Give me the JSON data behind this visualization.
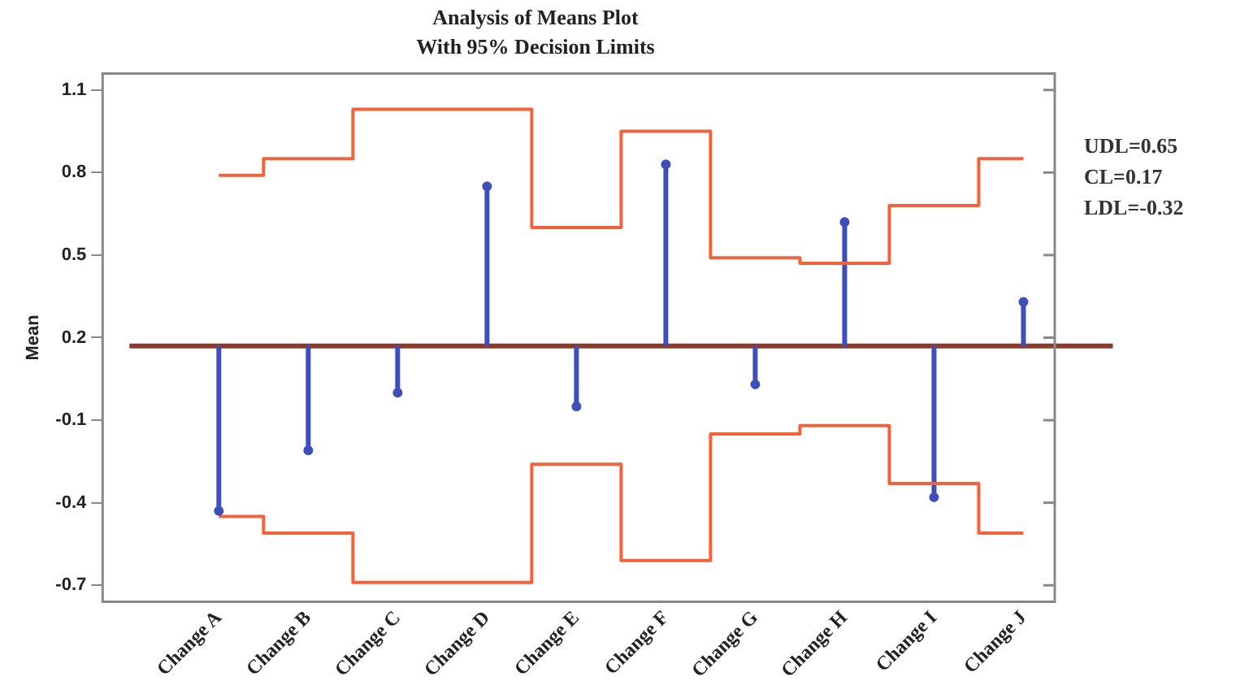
{
  "chart_data": {
    "type": "scatter",
    "title": "Analysis of Means Plot",
    "subtitle": "With 95% Decision Limits",
    "ylabel": "Mean",
    "categories": [
      "Change A",
      "Change B",
      "Change C",
      "Change D",
      "Change E",
      "Change F",
      "Change G",
      "Change H",
      "Change I",
      "Change J"
    ],
    "series": [
      {
        "marker": "circle",
        "color": "#3f4fb8",
        "values": [
          -0.43,
          -0.21,
          0.0,
          0.75,
          -0.05,
          0.83,
          0.03,
          0.62,
          -0.38,
          0.33
        ],
        "errors": [
          [
            -0.43,
            0.17
          ],
          [
            -0.21,
            0.17
          ],
          [
            0.0,
            0.17
          ],
          [
            0.17,
            0.75
          ],
          [
            -0.05,
            0.17
          ],
          [
            0.17,
            0.83
          ],
          [
            0.03,
            0.17
          ],
          [
            0.17,
            0.62
          ],
          [
            -0.38,
            0.17
          ],
          [
            0.17,
            0.33
          ]
        ]
      },
      {
        "type": "step",
        "color": "#f4623c",
        "values": [
          0.79,
          0.85,
          1.03,
          1.03,
          0.6,
          0.95,
          0.49,
          0.47,
          0.68,
          0.85
        ]
      },
      {
        "type": "step",
        "color": "#f4623c",
        "values": [
          -0.45,
          -0.51,
          -0.69,
          -0.69,
          -0.26,
          -0.61,
          -0.15,
          -0.12,
          -0.33,
          -0.51
        ]
      }
    ],
    "ref_lines": [
      {
        "axis": "y",
        "value": 0.17,
        "color": "#8b3b2e"
      }
    ],
    "ylim": [
      -0.76,
      1.16
    ],
    "yticks": [
      -0.7,
      -0.4,
      -0.1,
      0.2,
      0.5,
      0.8,
      1.1
    ],
    "grid": false,
    "legend": false,
    "annotations": [
      "UDL=0.65",
      "CL=0.17",
      "LDL=-0.32"
    ]
  }
}
